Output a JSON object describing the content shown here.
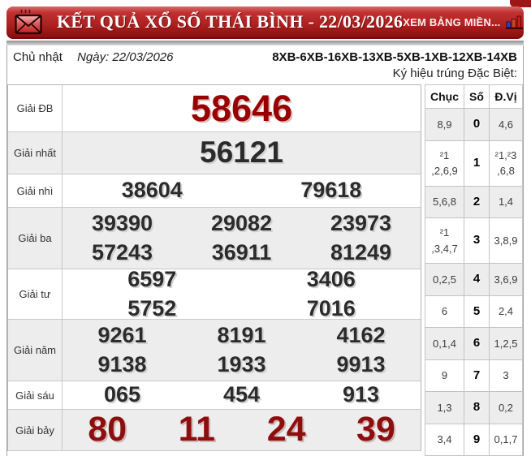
{
  "header": {
    "title": "KẾT QUẢ XỔ SỐ THÁI BÌNH - 22/03/2026",
    "view_link": "XEM BẢNG MIỀN...",
    "envelope_icon": "envelope-icon",
    "chart_icon": "bar-chart-icon"
  },
  "draw_info": {
    "weekday": "Chủ nhật",
    "date": "Ngày: 22/03/2026",
    "special_codes": "8XB-6XB-16XB-13XB-5XB-1XB-12XB-14XB",
    "special_symbol_label": "Ký hiệu trúng Đặc Biệt:"
  },
  "prize_table": {
    "rows": [
      {
        "key": "db",
        "label": "Giải ĐB",
        "style": "special",
        "lines": [
          [
            "58646"
          ]
        ]
      },
      {
        "key": "nhat",
        "label": "Giải nhất",
        "style": "first",
        "lines": [
          [
            "56121"
          ]
        ]
      },
      {
        "key": "nhi",
        "label": "Giải nhì",
        "style": "normal",
        "lines": [
          [
            "38604",
            "79618"
          ]
        ]
      },
      {
        "key": "ba",
        "label": "Giải ba",
        "style": "normal",
        "lines": [
          [
            "39390",
            "29082",
            "23973"
          ],
          [
            "57243",
            "36911",
            "81249"
          ]
        ]
      },
      {
        "key": "tu",
        "label": "Giải tư",
        "style": "normal",
        "lines": [
          [
            "6597",
            "3406"
          ],
          [
            "5752",
            "7016"
          ]
        ]
      },
      {
        "key": "nam",
        "label": "Giải năm",
        "style": "normal",
        "lines": [
          [
            "9261",
            "8191",
            "4162"
          ],
          [
            "9138",
            "1933",
            "9913"
          ]
        ]
      },
      {
        "key": "sau",
        "label": "Giải sáu",
        "style": "normal",
        "lines": [
          [
            "065",
            "454",
            "913"
          ]
        ]
      },
      {
        "key": "bay",
        "label": "Giải bảy",
        "style": "seven",
        "lines": [
          [
            "80",
            "11",
            "24",
            "39"
          ]
        ]
      }
    ]
  },
  "digits_table": {
    "headers": [
      "Chục",
      "Số",
      "Đ.Vị"
    ],
    "rows": [
      {
        "chuc": "8,9",
        "so": "0",
        "dvi": "4,6"
      },
      {
        "chuc": "²1\n,2,6,9",
        "so": "1",
        "dvi": "²1,²3\n,6,8"
      },
      {
        "chuc": "5,6,8",
        "so": "2",
        "dvi": "1,4"
      },
      {
        "chuc": "²1\n,3,4,7",
        "so": "3",
        "dvi": "3,8,9"
      },
      {
        "chuc": "0,2,5",
        "so": "4",
        "dvi": "3,6,9"
      },
      {
        "chuc": "6",
        "so": "5",
        "dvi": "2,4"
      },
      {
        "chuc": "0,1,4",
        "so": "6",
        "dvi": "1,2,5"
      },
      {
        "chuc": "9",
        "so": "7",
        "dvi": "3"
      },
      {
        "chuc": "1,3",
        "so": "8",
        "dvi": "0,2"
      },
      {
        "chuc": "3,4",
        "so": "9",
        "dvi": "0,1,7"
      }
    ]
  },
  "colors": {
    "header_red": "#b12222",
    "special_number_red": "#990000",
    "seventh_prize_red": "#8e0e0e",
    "row_shade": "#ededed"
  }
}
